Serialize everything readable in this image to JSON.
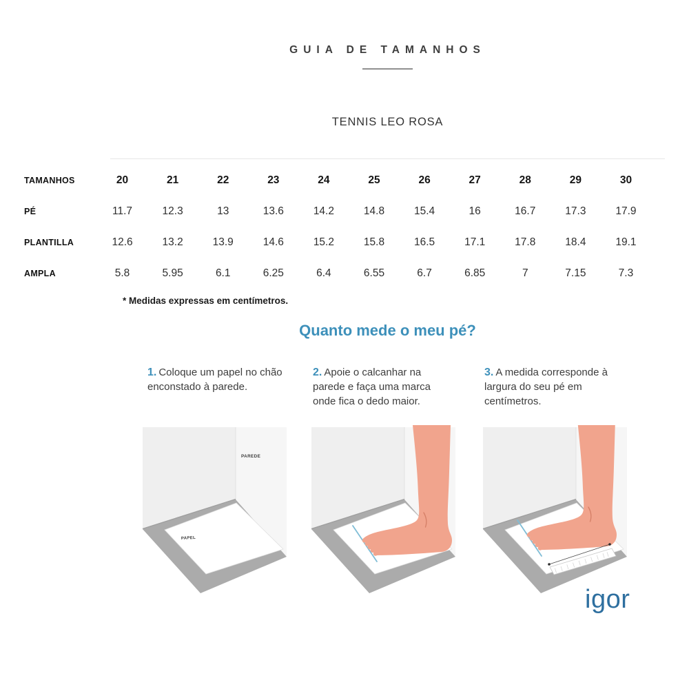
{
  "header": {
    "title": "GUIA DE TAMANHOS",
    "product": "TENNIS LEO ROSA"
  },
  "size_table": {
    "rows": [
      {
        "label": "TAMANHOS",
        "values": [
          "20",
          "21",
          "22",
          "23",
          "24",
          "25",
          "26",
          "27",
          "28",
          "29",
          "30"
        ]
      },
      {
        "label": "PÉ",
        "values": [
          "11.7",
          "12.3",
          "13",
          "13.6",
          "14.2",
          "14.8",
          "15.4",
          "16",
          "16.7",
          "17.3",
          "17.9"
        ]
      },
      {
        "label": "PLANTILLA",
        "values": [
          "12.6",
          "13.2",
          "13.9",
          "14.6",
          "15.2",
          "15.8",
          "16.5",
          "17.1",
          "17.8",
          "18.4",
          "19.1"
        ]
      },
      {
        "label": "AMPLA",
        "values": [
          "5.8",
          "5.95",
          "6.1",
          "6.25",
          "6.4",
          "6.55",
          "6.7",
          "6.85",
          "7",
          "7.15",
          "7.3"
        ]
      }
    ],
    "note": "* Medidas expressas em centímetros."
  },
  "measure_guide": {
    "heading": "Quanto mede o meu pé?",
    "steps": [
      {
        "number": "1.",
        "text": "Coloque um papel no chão enconstado à parede."
      },
      {
        "number": "2.",
        "text": "Apoie o calcanhar na parede e faça uma marca onde fica o dedo maior."
      },
      {
        "number": "3.",
        "text": "A medida corresponde à largura do seu pé em centímetros."
      }
    ],
    "illustration_labels": {
      "wall": "PAREDE",
      "paper": "PAPEL"
    }
  },
  "footer": {
    "brand": "igor"
  },
  "colors": {
    "accent_blue": "#3d90ba",
    "brand_blue": "#2e6f9f",
    "skin": "#f1a48d",
    "floor_gray": "#ababab",
    "wall_gray": "#efefef",
    "measure_line_blue": "#7fbdd6"
  }
}
